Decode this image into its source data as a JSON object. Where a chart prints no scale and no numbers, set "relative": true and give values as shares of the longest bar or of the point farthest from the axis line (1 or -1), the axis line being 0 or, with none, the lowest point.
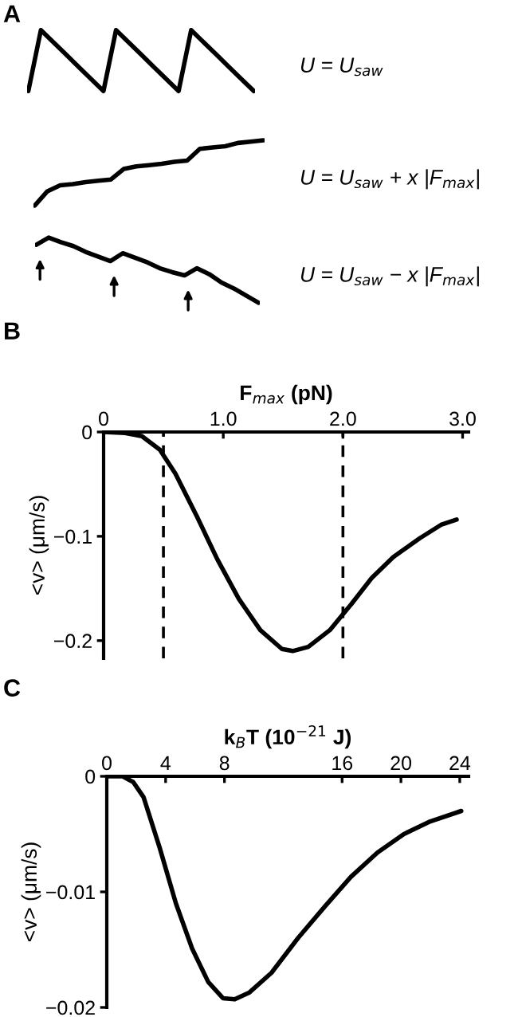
{
  "chart_data": [
    {
      "type": "line",
      "title": "A",
      "relative": true,
      "categories": [
        null,
        null,
        null,
        null,
        null,
        null,
        null,
        null,
        null,
        null,
        null,
        null,
        null,
        null,
        null,
        null,
        null,
        null,
        null
      ],
      "series": [
        {
          "color": "#000000",
          "values": [
            0,
            1,
            0.8,
            0.6,
            0.4,
            0.2,
            0,
            1,
            0.8,
            0.6,
            0.4,
            0.2,
            0,
            1,
            0.8,
            0.6,
            0.4,
            0.2,
            0
          ]
        }
      ],
      "annotations": [
        "U = U$_{saw}$"
      ]
    },
    {
      "type": "line",
      "relative": true,
      "categories": [
        null,
        null,
        null,
        null,
        null,
        null,
        null,
        null,
        null,
        null,
        null,
        null,
        null,
        null,
        null,
        null,
        null,
        null,
        null
      ],
      "series": [
        {
          "color": "#000000",
          "values": [
            0,
            0.22,
            0.31,
            0.33,
            0.36,
            0.38,
            0.4,
            0.56,
            0.6,
            0.62,
            0.64,
            0.67,
            0.69,
            0.87,
            0.89,
            0.91,
            0.96,
            0.98,
            1
          ]
        }
      ],
      "annotations": [
        "U = U$_{saw}$ + x |F$_{max}$|"
      ]
    },
    {
      "type": "line",
      "relative": true,
      "categories": [
        null,
        null,
        null,
        null,
        null,
        null,
        null,
        null,
        null,
        null,
        null,
        null,
        null,
        null,
        null,
        null,
        null,
        null,
        null
      ],
      "series": [
        {
          "color": "#000000",
          "values": [
            0.89,
            1,
            0.93,
            0.87,
            0.78,
            0.71,
            0.64,
            0.76,
            0.69,
            0.62,
            0.53,
            0.47,
            0.42,
            0.53,
            0.44,
            0.31,
            0.22,
            0.11,
            0
          ]
        }
      ],
      "annotations": [
        "U = U$_{saw}$ − x |F$_{max}$|"
      ]
    },
    {
      "type": "line",
      "title": "B",
      "xlabel": "F$_{max}$ (pN)",
      "ylabel": "<v> (μm/s)",
      "xlim": [
        0,
        3.05
      ],
      "ylim": [
        -0.217,
        0
      ],
      "xticks": [
        {
          "value": 0,
          "label": "0"
        },
        {
          "value": 1,
          "label": "1.0"
        },
        {
          "value": 2,
          "label": "2.0"
        },
        {
          "value": 3,
          "label": "3.0"
        }
      ],
      "yticks": [
        0,
        {
          "value": -0.1,
          "label": "−0.1"
        },
        {
          "value": -0.2,
          "label": "−0.2"
        }
      ],
      "x": [
        0,
        0.18,
        0.32,
        0.47,
        0.6,
        0.78,
        0.95,
        1.13,
        1.31,
        1.49,
        1.58,
        1.71,
        1.89,
        2.07,
        2.24,
        2.42,
        2.64,
        2.82,
        2.95
      ],
      "series": [
        {
          "color": "#000000",
          "values": [
            0,
            -0.001,
            -0.004,
            -0.017,
            -0.04,
            -0.081,
            -0.122,
            -0.16,
            -0.19,
            -0.208,
            -0.21,
            -0.206,
            -0.19,
            -0.165,
            -0.14,
            -0.12,
            -0.102,
            -0.089,
            -0.084
          ]
        }
      ],
      "ref_lines": [
        {
          "axis": "x",
          "value": 0.5,
          "line_style": "dashed",
          "color": "#000000"
        },
        {
          "axis": "x",
          "value": 2.0,
          "line_style": "dashed",
          "color": "#000000"
        }
      ]
    },
    {
      "type": "line",
      "title": "C",
      "xlabel": "k$_{B}$T (10$^{−21}$ J)",
      "ylabel": "<v> (μm/s)",
      "xlim": [
        0,
        24.6
      ],
      "ylim": [
        -0.02,
        0
      ],
      "xticks": [
        0,
        4,
        8,
        16,
        20,
        24
      ],
      "yticks": [
        0,
        {
          "value": -0.01,
          "label": "−0.01"
        },
        {
          "value": -0.02,
          "label": "−0.02"
        }
      ],
      "x": [
        0,
        1.08,
        1.8,
        2.5,
        3.6,
        4.7,
        5.8,
        6.9,
        7.9,
        8.7,
        9.7,
        11.2,
        13,
        14.8,
        16.6,
        18.4,
        20.2,
        22,
        24.1
      ],
      "series": [
        {
          "color": "#000000",
          "values": [
            0,
            0,
            -0.0005,
            -0.0018,
            -0.0062,
            -0.011,
            -0.0149,
            -0.0178,
            -0.0192,
            -0.0193,
            -0.0187,
            -0.017,
            -0.014,
            -0.0113,
            -0.0087,
            -0.0066,
            -0.005,
            -0.0039,
            -0.003
          ]
        }
      ]
    }
  ]
}
